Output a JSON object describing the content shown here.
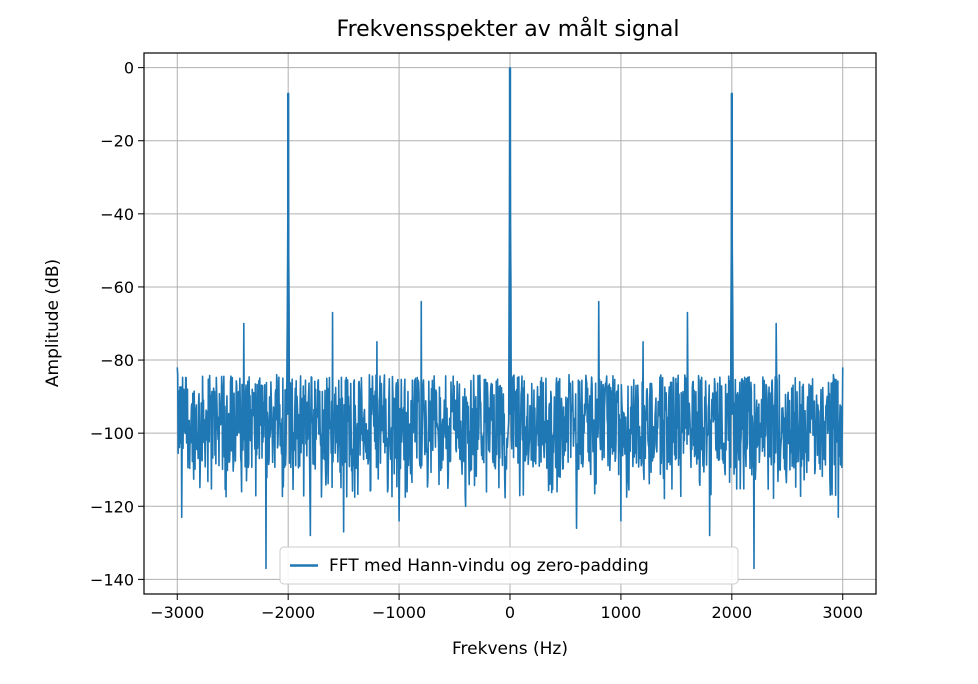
{
  "chart_data": {
    "type": "line",
    "title": "Frekvensspekter av målt signal",
    "xlabel": "Frekvens (Hz)",
    "ylabel": "Amplitude (dB)",
    "xlim": [
      -3300,
      3300
    ],
    "ylim": [
      -144,
      4
    ],
    "xticks": [
      -3000,
      -2000,
      -1000,
      0,
      1000,
      2000,
      3000
    ],
    "xtick_labels": [
      "−3000",
      "−2000",
      "−1000",
      "0",
      "1000",
      "2000",
      "3000"
    ],
    "yticks": [
      0,
      -20,
      -40,
      -60,
      -80,
      -100,
      -120,
      -140
    ],
    "ytick_labels": [
      "0",
      "−20",
      "−40",
      "−60",
      "−80",
      "−100",
      "−120",
      "−140"
    ],
    "grid": true,
    "legend_position": "bottom-center",
    "series": [
      {
        "name": "FFT med Hann-vindu og zero-padding",
        "color": "#1f77b4",
        "noise_floor_db": -97,
        "noise_band_db": [
          -110,
          -84
        ],
        "frequency_range_hz": [
          -3000,
          3000
        ],
        "peaks": [
          {
            "x": -2000,
            "y": -7
          },
          {
            "x": 0,
            "y": 0
          },
          {
            "x": 2000,
            "y": -7
          }
        ],
        "spurs": [
          {
            "x": -2400,
            "y": -70
          },
          {
            "x": -1600,
            "y": -67
          },
          {
            "x": -800,
            "y": -64
          },
          {
            "x": -1200,
            "y": -75
          },
          {
            "x": 800,
            "y": -64
          },
          {
            "x": 1200,
            "y": -75
          },
          {
            "x": 1600,
            "y": -67
          },
          {
            "x": 2400,
            "y": -70
          }
        ],
        "dips": [
          {
            "x": -2960,
            "y": -123
          },
          {
            "x": -2400,
            "y": -129
          },
          {
            "x": -2200,
            "y": -137
          },
          {
            "x": -1800,
            "y": -128
          },
          {
            "x": -1600,
            "y": -122
          },
          {
            "x": -1500,
            "y": -127
          },
          {
            "x": -1000,
            "y": -124
          },
          {
            "x": -400,
            "y": -120
          },
          {
            "x": 600,
            "y": -126
          },
          {
            "x": 1000,
            "y": -124
          },
          {
            "x": 1800,
            "y": -128
          },
          {
            "x": 2200,
            "y": -137
          },
          {
            "x": 2400,
            "y": -129
          },
          {
            "x": 2960,
            "y": -123
          }
        ]
      }
    ]
  }
}
